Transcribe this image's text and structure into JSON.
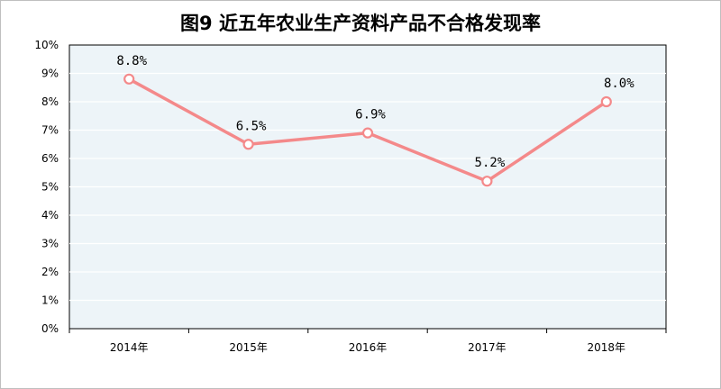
{
  "chart_data": {
    "type": "line",
    "title": "图9 近五年农业生产资料产品不合格发现率",
    "categories": [
      "2014年",
      "2015年",
      "2016年",
      "2017年",
      "2018年"
    ],
    "series": [
      {
        "values": [
          8.8,
          6.5,
          6.9,
          5.2,
          8.0
        ],
        "color": "#f4898a"
      }
    ],
    "data_labels": [
      "8.8%",
      "6.5%",
      "6.9%",
      "5.2%",
      "8.0%"
    ],
    "y_ticks": [
      "0%",
      "1%",
      "2%",
      "3%",
      "4%",
      "5%",
      "6%",
      "7%",
      "8%",
      "9%",
      "10%"
    ],
    "ylim": [
      0,
      10
    ],
    "grid": true,
    "legend": "none",
    "plot_background": "#edf4f8",
    "grid_color": "#ffffff"
  }
}
